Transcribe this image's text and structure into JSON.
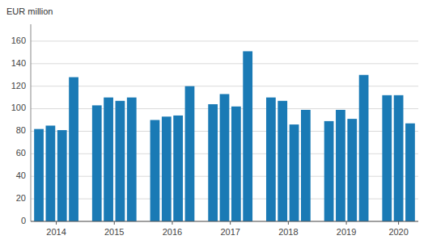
{
  "chart_data": {
    "type": "bar",
    "ylabel": "EUR million",
    "categories": [
      "2014",
      null,
      null,
      null,
      "2015",
      null,
      null,
      null,
      "2016",
      null,
      null,
      null,
      "2017",
      null,
      null,
      null,
      "2018",
      null,
      null,
      null,
      "2019",
      null,
      null,
      null,
      "2020",
      null,
      null
    ],
    "values": [
      82,
      85,
      81,
      128,
      103,
      110,
      107,
      110,
      90,
      93,
      94,
      120,
      104,
      113,
      102,
      151,
      110,
      107,
      86,
      99,
      89,
      99,
      91,
      130,
      112,
      112,
      87
    ],
    "color": "#1a7ab5",
    "ylim": [
      0,
      175
    ],
    "yticks": [
      0,
      20,
      40,
      60,
      80,
      100,
      120,
      140,
      160
    ],
    "grid": true
  }
}
